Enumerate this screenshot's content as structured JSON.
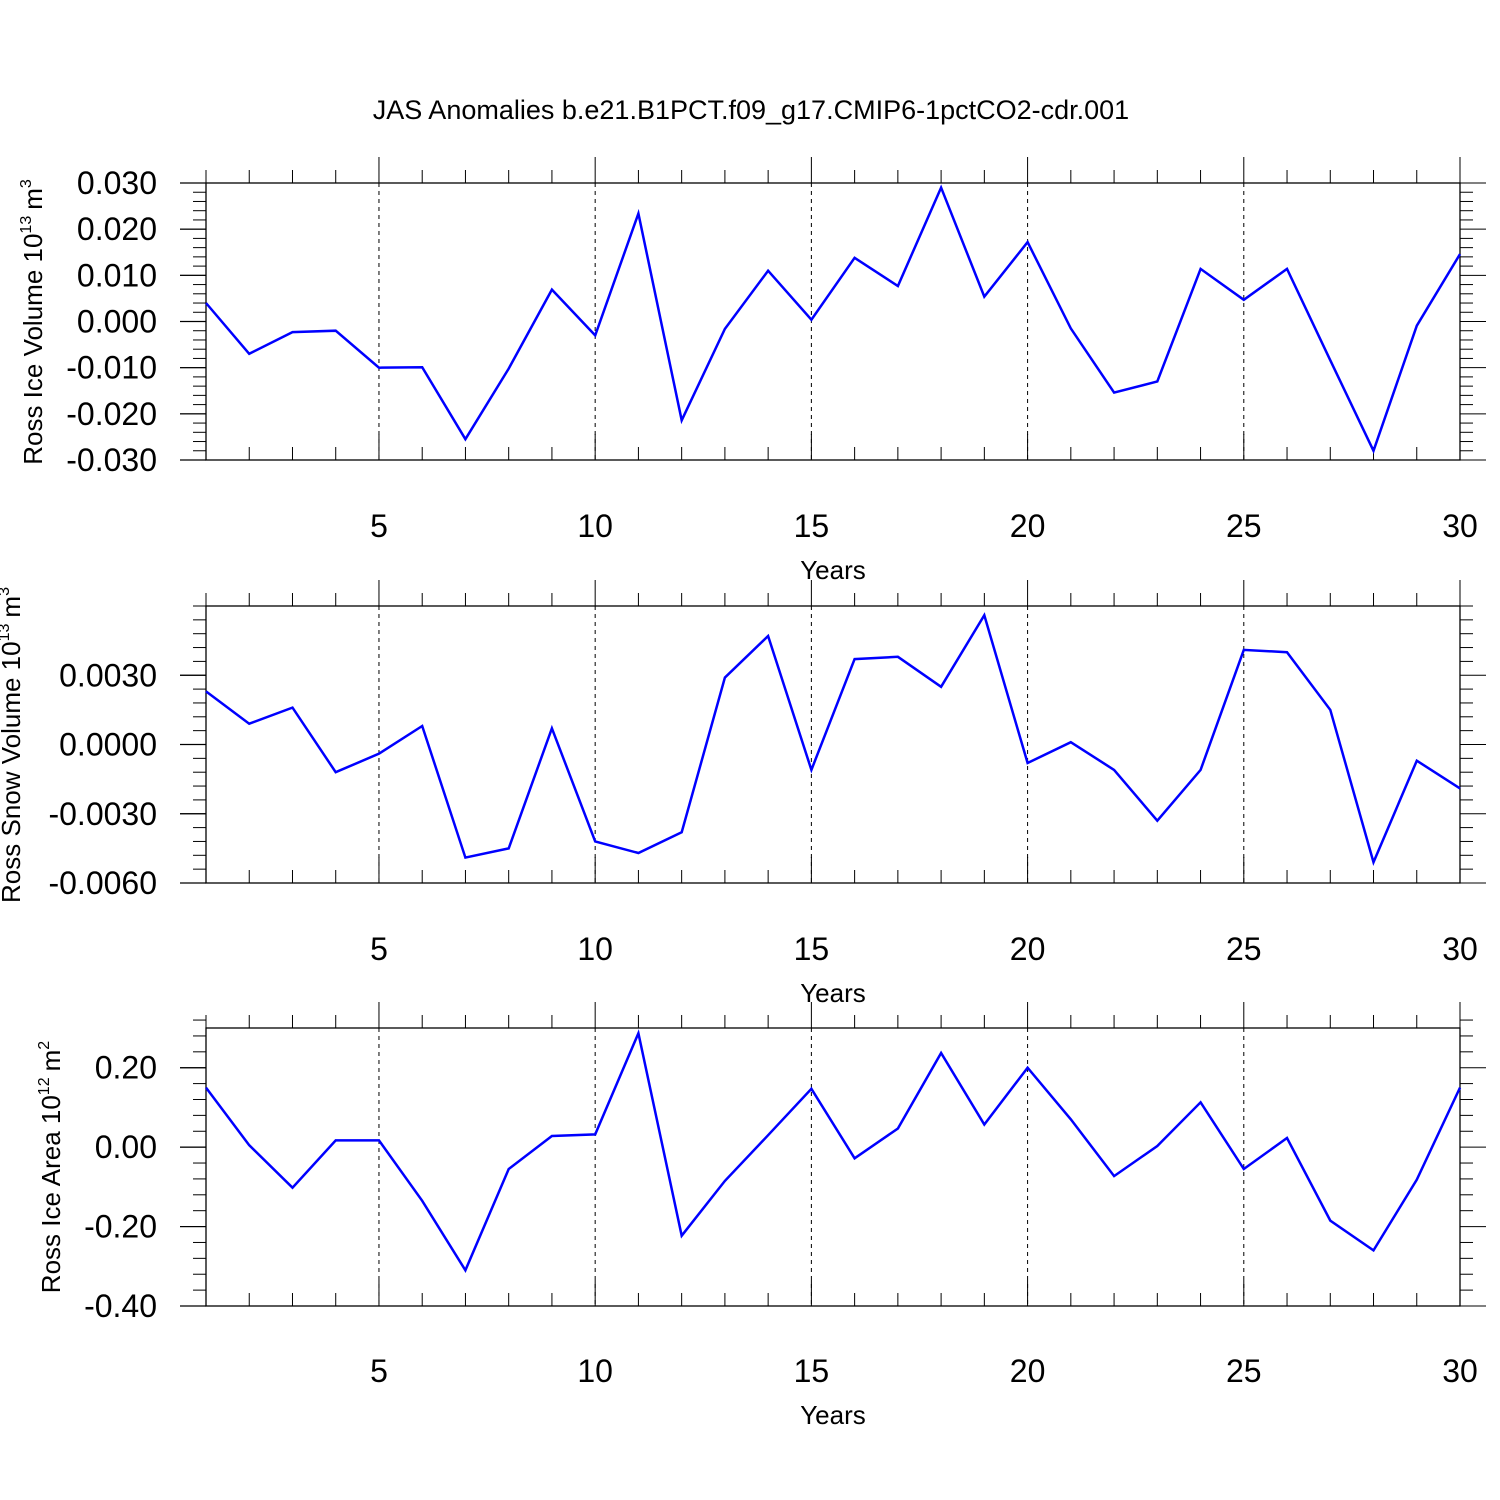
{
  "title": "JAS Anomalies b.e21.B1PCT.f09_g17.CMIP6-1pctCO2-cdr.001",
  "style": {
    "line_color": "#0000ff",
    "axis_color": "#000000",
    "grid_color": "#000000",
    "background": "#ffffff"
  },
  "chart_data": [
    {
      "type": "line",
      "ylabel": {
        "text": "Ross Ice Volume 10",
        "exponent": "13",
        "unit": "m",
        "unit_exponent": "3"
      },
      "xlabel": "Years",
      "xlim": [
        1,
        30
      ],
      "ylim": [
        -0.03,
        0.03
      ],
      "x_ticks": [
        5,
        10,
        15,
        20,
        25,
        30
      ],
      "x_tick_labels": [
        "5",
        "10",
        "15",
        "20",
        "25",
        "30"
      ],
      "y_ticks": [
        0.03,
        0.02,
        0.01,
        0.0,
        -0.01,
        -0.02,
        -0.03
      ],
      "y_tick_labels": [
        "0.030",
        "0.020",
        "0.010",
        "0.000",
        "-0.010",
        "-0.020",
        "-0.030"
      ],
      "grid": "vertical-dashed-at-major-ticks",
      "series": [
        {
          "name": "Ross Ice Volume",
          "x": [
            1,
            2,
            3,
            4,
            5,
            6,
            7,
            8,
            9,
            10,
            11,
            12,
            13,
            14,
            15,
            16,
            17,
            18,
            19,
            20,
            21,
            22,
            23,
            24,
            25,
            26,
            27,
            28,
            29,
            30
          ],
          "values": [
            0.004,
            -0.007,
            -0.0023,
            -0.002,
            -0.01,
            -0.0099,
            -0.0255,
            -0.0102,
            0.0069,
            -0.003,
            0.0234,
            -0.0214,
            -0.0016,
            0.011,
            0.0004,
            0.0138,
            0.0077,
            0.029,
            0.0054,
            0.0172,
            -0.0015,
            -0.0154,
            -0.013,
            0.0114,
            0.0047,
            0.0114,
            -0.0084,
            -0.028,
            -0.0009,
            0.0146
          ]
        }
      ]
    },
    {
      "type": "line",
      "ylabel": {
        "text": "Ross Snow Volume 10",
        "exponent": "13",
        "unit": "m",
        "unit_exponent": "3"
      },
      "xlabel": "Years",
      "xlim": [
        1,
        30
      ],
      "ylim": [
        -0.006,
        0.006
      ],
      "x_ticks": [
        5,
        10,
        15,
        20,
        25,
        30
      ],
      "x_tick_labels": [
        "5",
        "10",
        "15",
        "20",
        "25",
        "30"
      ],
      "y_ticks": [
        0.003,
        0.0,
        -0.003,
        -0.006
      ],
      "y_tick_labels": [
        "0.0030",
        "0.0000",
        "-0.0030",
        "-0.0060"
      ],
      "grid": "vertical-dashed-at-major-ticks",
      "series": [
        {
          "name": "Ross Snow Volume",
          "x": [
            1,
            2,
            3,
            4,
            5,
            6,
            7,
            8,
            9,
            10,
            11,
            12,
            13,
            14,
            15,
            16,
            17,
            18,
            19,
            20,
            21,
            22,
            23,
            24,
            25,
            26,
            27,
            28,
            29,
            30
          ],
          "values": [
            0.0023,
            0.0009,
            0.0016,
            -0.0012,
            -0.0004,
            0.0008,
            -0.0049,
            -0.0045,
            0.0007,
            -0.0042,
            -0.0047,
            -0.0038,
            0.0029,
            0.0047,
            -0.0011,
            0.0037,
            0.0038,
            0.0025,
            0.0056,
            -0.0008,
            0.0001,
            -0.0011,
            -0.0033,
            -0.0011,
            0.0041,
            0.004,
            0.0015,
            -0.0051,
            -0.0007,
            -0.0019
          ]
        }
      ]
    },
    {
      "type": "line",
      "ylabel": {
        "text": "Ross Ice Area 10",
        "exponent": "12",
        "unit": "m",
        "unit_exponent": "2"
      },
      "xlabel": "Years",
      "xlim": [
        1,
        30
      ],
      "ylim": [
        -0.4,
        0.3
      ],
      "x_ticks": [
        5,
        10,
        15,
        20,
        25,
        30
      ],
      "x_tick_labels": [
        "5",
        "10",
        "15",
        "20",
        "25",
        "30"
      ],
      "y_ticks": [
        0.2,
        0.0,
        -0.2,
        -0.4
      ],
      "y_tick_labels": [
        "0.20",
        "0.00",
        "-0.20",
        "-0.40"
      ],
      "grid": "vertical-dashed-at-major-ticks",
      "series": [
        {
          "name": "Ross Ice Area",
          "x": [
            1,
            2,
            3,
            4,
            5,
            6,
            7,
            8,
            9,
            10,
            11,
            12,
            13,
            14,
            15,
            16,
            17,
            18,
            19,
            20,
            21,
            22,
            23,
            24,
            25,
            26,
            27,
            28,
            29,
            30
          ],
          "values": [
            0.15,
            0.005,
            -0.102,
            0.017,
            0.017,
            -0.135,
            -0.31,
            -0.055,
            0.028,
            0.032,
            0.287,
            -0.223,
            -0.085,
            0.03,
            0.147,
            -0.028,
            0.047,
            0.237,
            0.057,
            0.2,
            0.07,
            -0.073,
            0.003,
            0.113,
            -0.055,
            0.023,
            -0.185,
            -0.26,
            -0.082,
            0.15
          ]
        }
      ]
    }
  ]
}
